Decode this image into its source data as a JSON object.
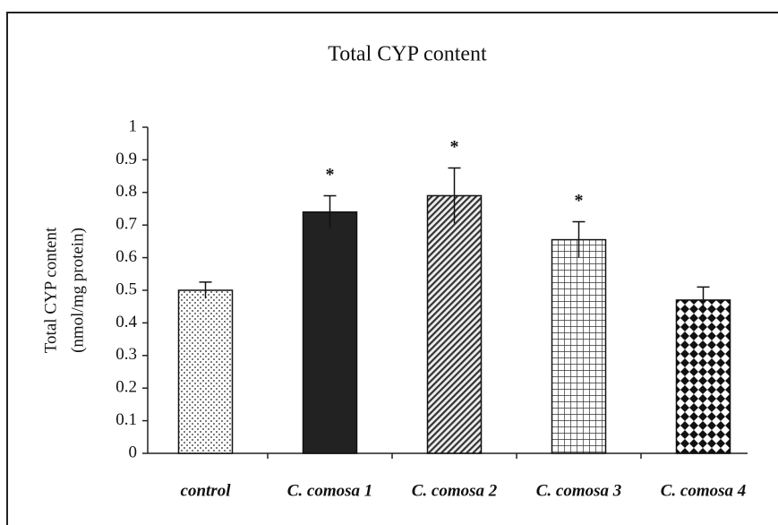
{
  "chart_data": {
    "type": "bar",
    "title": "Total CYP content",
    "ylabel": [
      "Total CYP content",
      "(nmol/mg protein)"
    ],
    "categories": [
      "control",
      "C. comosa 1",
      "C. comosa 2",
      "C. comosa 3",
      "C. comosa 4"
    ],
    "values": [
      0.5,
      0.74,
      0.79,
      0.655,
      0.47
    ],
    "errors": [
      0.025,
      0.05,
      0.085,
      0.055,
      0.04
    ],
    "annotations": [
      null,
      "*",
      "*",
      "*",
      null
    ],
    "patterns": [
      "dots",
      "solid",
      "diagonal",
      "grid",
      "diamond"
    ],
    "color": "#111111",
    "ylim": [
      0,
      1
    ],
    "yticks": [
      0,
      0.1,
      0.2,
      0.3,
      0.4,
      0.5,
      0.6,
      0.7,
      0.8,
      0.9,
      1
    ],
    "grid": false
  }
}
